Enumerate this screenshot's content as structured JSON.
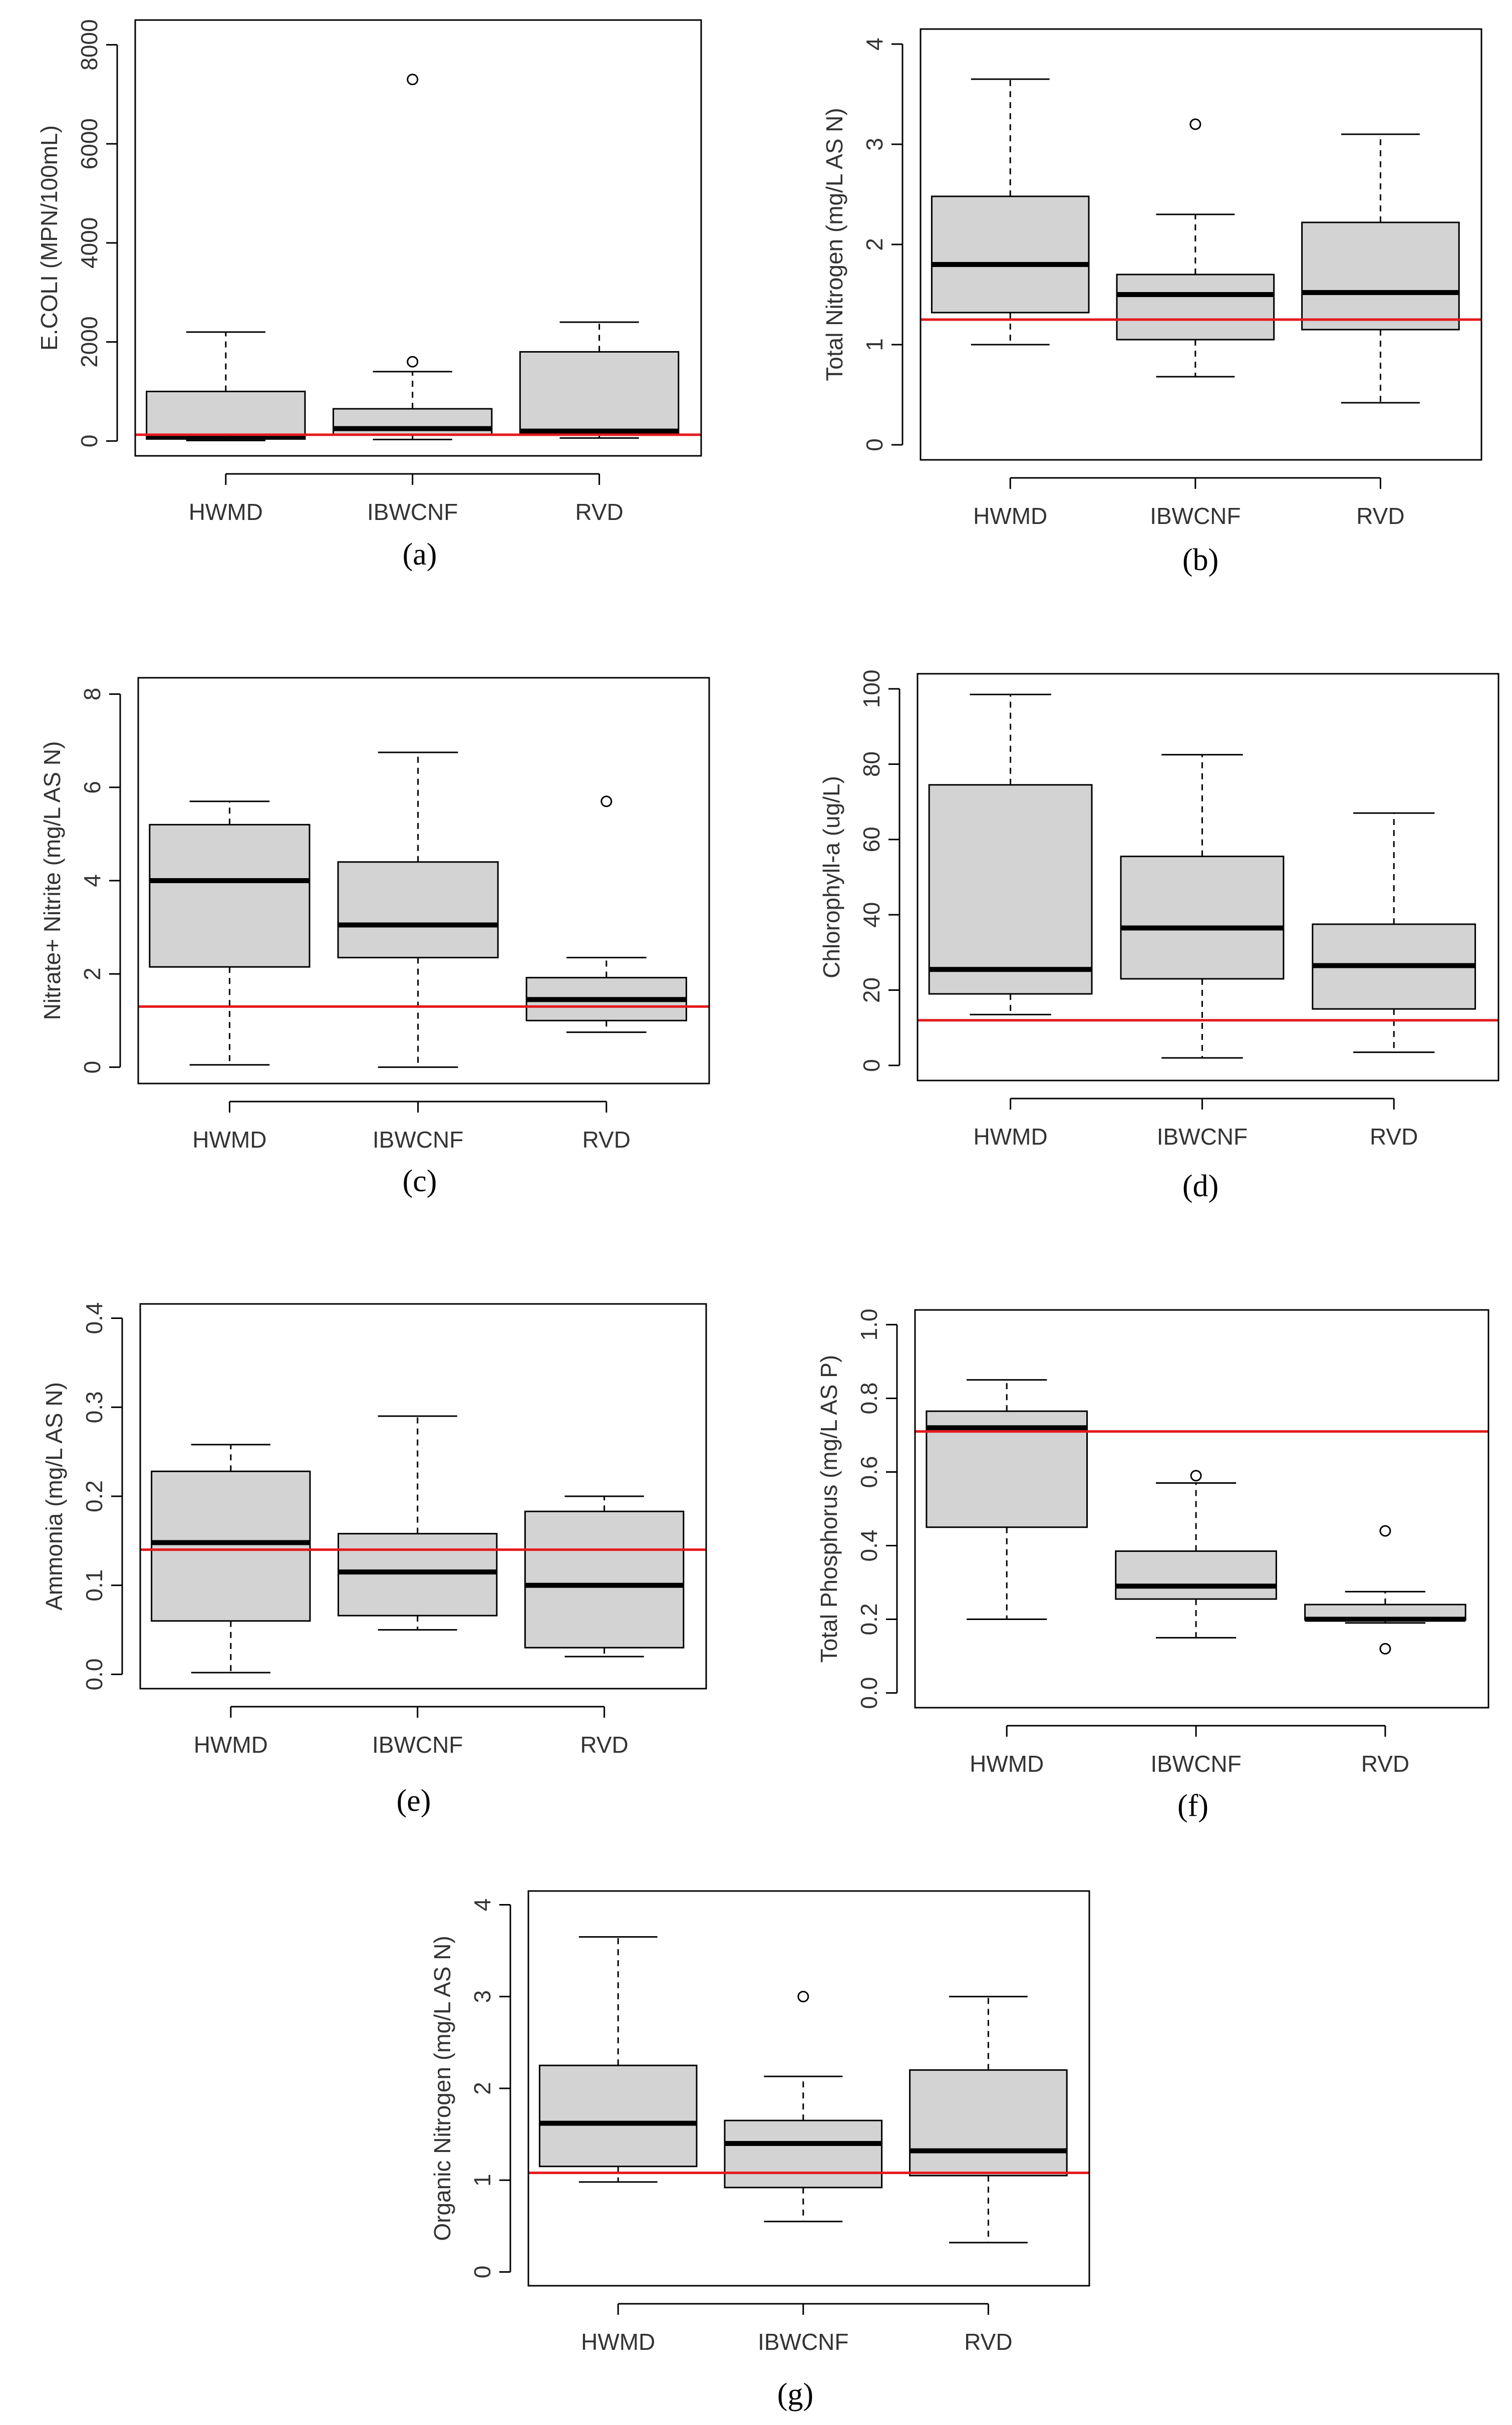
{
  "figure": {
    "colors": {
      "box_fill": "#d3d3d3",
      "threshold": "#e41a1c",
      "ink": "#000000",
      "text": "#333333"
    }
  },
  "chart_data": [
    {
      "type": "boxplot",
      "id": "a",
      "caption": "(a)",
      "ylabel": "E.COLI (MPN/100mL)",
      "ylim": [
        -300,
        8500
      ],
      "yticks": [
        0,
        2000,
        4000,
        6000,
        8000
      ],
      "categories": [
        "HWMD",
        "IBWCNF",
        "RVD"
      ],
      "threshold": 126,
      "boxes": [
        {
          "min": 10,
          "q1": 40,
          "median": 100,
          "q3": 1000,
          "max": 2200,
          "outliers": []
        },
        {
          "min": 30,
          "q1": 120,
          "median": 250,
          "q3": 650,
          "max": 1400,
          "outliers": [
            1600,
            7300
          ]
        },
        {
          "min": 60,
          "q1": 150,
          "median": 200,
          "q3": 1800,
          "max": 2400,
          "outliers": []
        }
      ]
    },
    {
      "type": "boxplot",
      "id": "b",
      "caption": "(b)",
      "ylabel": "Total Nitrogen (mg/L AS N)",
      "ylim": [
        -0.15,
        4.15
      ],
      "yticks": [
        0,
        1,
        2,
        3,
        4
      ],
      "categories": [
        "HWMD",
        "IBWCNF",
        "RVD"
      ],
      "threshold": 1.25,
      "boxes": [
        {
          "min": 1.0,
          "q1": 1.32,
          "median": 1.8,
          "q3": 2.48,
          "max": 3.65,
          "outliers": []
        },
        {
          "min": 0.68,
          "q1": 1.05,
          "median": 1.5,
          "q3": 1.7,
          "max": 2.3,
          "outliers": [
            3.2
          ]
        },
        {
          "min": 0.42,
          "q1": 1.15,
          "median": 1.52,
          "q3": 2.22,
          "max": 3.1,
          "outliers": []
        }
      ]
    },
    {
      "type": "boxplot",
      "id": "c",
      "caption": "(c)",
      "ylabel": "Nitrate+ Nitrite (mg/L AS N)",
      "ylim": [
        -0.35,
        8.35
      ],
      "yticks": [
        0,
        2,
        4,
        6,
        8
      ],
      "categories": [
        "HWMD",
        "IBWCNF",
        "RVD"
      ],
      "threshold": 1.3,
      "boxes": [
        {
          "min": 0.05,
          "q1": 2.15,
          "median": 4.0,
          "q3": 5.2,
          "max": 5.7,
          "outliers": []
        },
        {
          "min": 0.0,
          "q1": 2.35,
          "median": 3.05,
          "q3": 4.4,
          "max": 6.75,
          "outliers": []
        },
        {
          "min": 0.75,
          "q1": 1.0,
          "median": 1.45,
          "q3": 1.92,
          "max": 2.35,
          "outliers": [
            5.7
          ]
        }
      ]
    },
    {
      "type": "boxplot",
      "id": "d",
      "caption": "(d)",
      "ylabel": "Chlorophyll-a (ug/L)",
      "ylim": [
        -4,
        104
      ],
      "yticks": [
        0,
        20,
        40,
        60,
        80,
        100
      ],
      "categories": [
        "HWMD",
        "IBWCNF",
        "RVD"
      ],
      "threshold": 12,
      "boxes": [
        {
          "min": 13.5,
          "q1": 19,
          "median": 25.5,
          "q3": 74.5,
          "max": 98.5,
          "outliers": []
        },
        {
          "min": 2,
          "q1": 23,
          "median": 36.5,
          "q3": 55.5,
          "max": 82.5,
          "outliers": []
        },
        {
          "min": 3.5,
          "q1": 15,
          "median": 26.5,
          "q3": 37.5,
          "max": 67,
          "outliers": []
        }
      ]
    },
    {
      "type": "boxplot",
      "id": "e",
      "caption": "(e)",
      "ylabel": "Ammonia (mg/L AS N)",
      "ylim": [
        -0.016,
        0.416
      ],
      "yticks": [
        0.0,
        0.1,
        0.2,
        0.3,
        0.4
      ],
      "tick_decimals": 1,
      "categories": [
        "HWMD",
        "IBWCNF",
        "RVD"
      ],
      "threshold": 0.14,
      "boxes": [
        {
          "min": 0.002,
          "q1": 0.06,
          "median": 0.148,
          "q3": 0.228,
          "max": 0.258,
          "outliers": []
        },
        {
          "min": 0.05,
          "q1": 0.066,
          "median": 0.115,
          "q3": 0.158,
          "max": 0.29,
          "outliers": []
        },
        {
          "min": 0.02,
          "q1": 0.03,
          "median": 0.1,
          "q3": 0.183,
          "max": 0.2,
          "outliers": []
        }
      ]
    },
    {
      "type": "boxplot",
      "id": "f",
      "caption": "(f)",
      "ylabel": "Total Phosphorus (mg/L AS P)",
      "ylim": [
        -0.04,
        1.04
      ],
      "yticks": [
        0.0,
        0.2,
        0.4,
        0.6,
        0.8,
        1.0
      ],
      "tick_decimals": 1,
      "categories": [
        "HWMD",
        "IBWCNF",
        "RVD"
      ],
      "threshold": 0.71,
      "boxes": [
        {
          "min": 0.2,
          "q1": 0.45,
          "median": 0.72,
          "q3": 0.765,
          "max": 0.85,
          "outliers": []
        },
        {
          "min": 0.15,
          "q1": 0.255,
          "median": 0.29,
          "q3": 0.385,
          "max": 0.57,
          "outliers": [
            0.59
          ]
        },
        {
          "min": 0.19,
          "q1": 0.198,
          "median": 0.2,
          "q3": 0.24,
          "max": 0.275,
          "outliers": [
            0.44,
            0.12
          ]
        }
      ]
    },
    {
      "type": "boxplot",
      "id": "g",
      "caption": "(g)",
      "ylabel": "Organic Nitrogen (mg/L AS N)",
      "ylim": [
        -0.15,
        4.15
      ],
      "yticks": [
        0,
        1,
        2,
        3,
        4
      ],
      "categories": [
        "HWMD",
        "IBWCNF",
        "RVD"
      ],
      "threshold": 1.08,
      "boxes": [
        {
          "min": 0.98,
          "q1": 1.15,
          "median": 1.62,
          "q3": 2.25,
          "max": 3.65,
          "outliers": []
        },
        {
          "min": 0.55,
          "q1": 0.92,
          "median": 1.4,
          "q3": 1.65,
          "max": 2.13,
          "outliers": [
            3.0
          ]
        },
        {
          "min": 0.32,
          "q1": 1.05,
          "median": 1.32,
          "q3": 2.2,
          "max": 3.0,
          "outliers": []
        }
      ]
    }
  ]
}
